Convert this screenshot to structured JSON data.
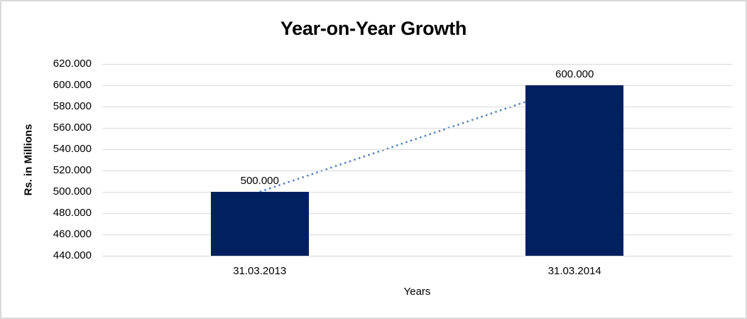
{
  "chart_data": {
    "type": "bar",
    "title": "Year-on-Year Growth",
    "xlabel": "Years",
    "ylabel": "Rs. in Millions",
    "categories": [
      "31.03.2013",
      "31.03.2014"
    ],
    "values": [
      500000,
      600000
    ],
    "value_labels": [
      "500.000",
      "600.000"
    ],
    "ylim": [
      440000,
      620000
    ],
    "ytick_step": 20000,
    "ytick_labels": [
      "620.000",
      "600.000",
      "580.000",
      "560.000",
      "540.000",
      "520.000",
      "500.000",
      "480.000",
      "460.000",
      "440.000"
    ],
    "grid": true,
    "legend": "none",
    "trendline": {
      "style": "dotted",
      "color": "#4f81bd"
    },
    "colors": {
      "bar": "#002060",
      "gridline": "#d9d9d9",
      "text": "#000000",
      "background": "#ffffff",
      "frame_border": "#d9d9d9"
    }
  }
}
